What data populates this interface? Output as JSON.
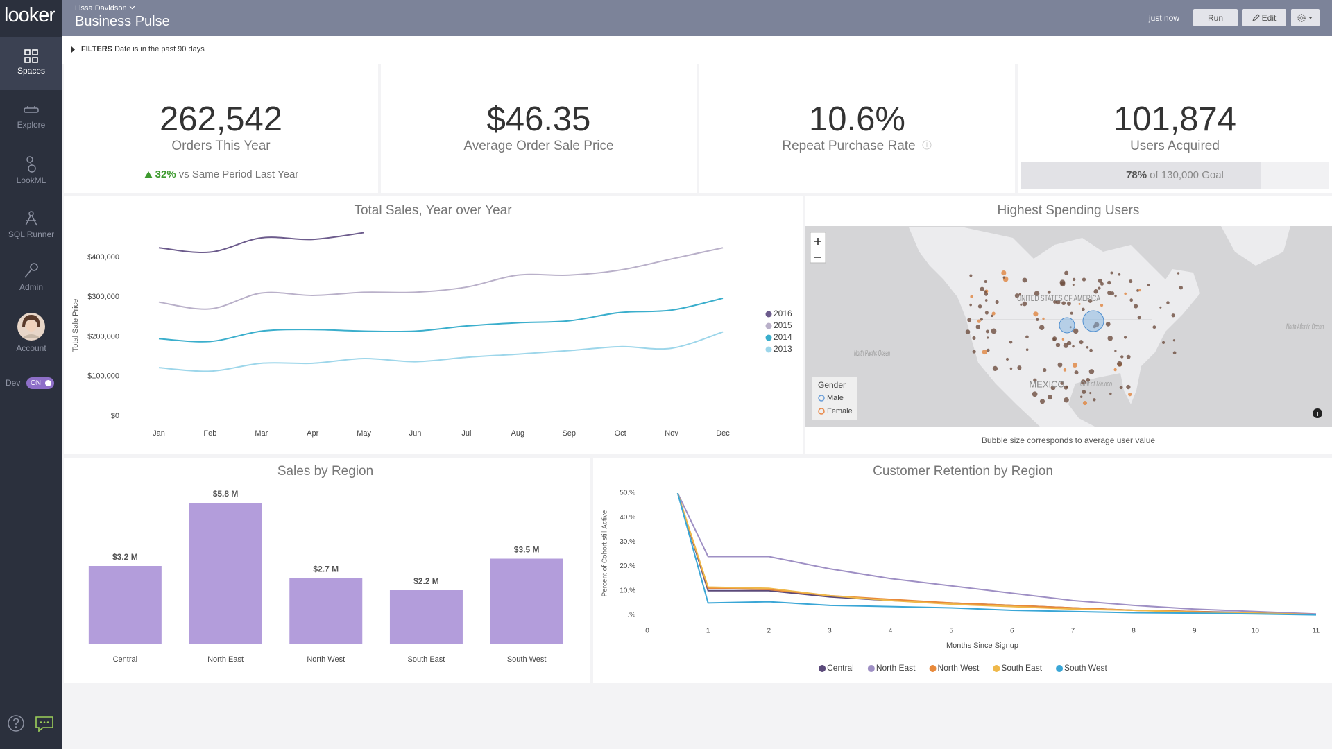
{
  "sidebar": {
    "logo": "looker",
    "items": [
      "Spaces",
      "Explore",
      "LookML",
      "SQL Runner",
      "Admin",
      "Account"
    ],
    "dev": "Dev",
    "dev_toggle": "ON"
  },
  "header": {
    "user": "Lissa Davidson",
    "title": "Business Pulse",
    "updated": "just now",
    "buttons": [
      "Run",
      "Edit"
    ]
  },
  "filters": {
    "label": "FILTERS",
    "text": "Date is in the past 90 days"
  },
  "kpis": [
    {
      "value": "262,542",
      "label": "Orders This Year",
      "change": "32%",
      "comparison": "vs Same Period Last Year"
    },
    {
      "value": "$46.35",
      "label": "Average Order Sale Price"
    },
    {
      "value": "10.6%",
      "label": "Repeat Purchase Rate"
    },
    {
      "value": "101,874",
      "label": "Users Acquired",
      "progress": {
        "value": 78,
        "label": "78%"
      },
      "goal": "of 130,000 Goal"
    }
  ],
  "map": {
    "title": "Highest Spending Users",
    "legend_title": "Gender",
    "legend": [
      "Male",
      "Female"
    ],
    "labels": [
      "UNITED STATES OF AMERICA",
      "MEXICO",
      "North Pacific Ocean",
      "North Atlantic Ocean",
      "Gulf of Mexico"
    ],
    "caption": "Bubble size corresponds to average user value"
  },
  "chart_data": [
    {
      "type": "line",
      "title": "Total Sales, Year over Year",
      "y_label": "Total Sale Price",
      "categories": [
        "Jan",
        "Feb",
        "Mar",
        "Apr",
        "May",
        "Jun",
        "Jul",
        "Aug",
        "Sep",
        "Oct",
        "Nov",
        "Dec"
      ],
      "series": [
        {
          "name": "2016",
          "color": "#6c5b8c",
          "values": [
            424000,
            413000,
            449000,
            445000,
            462000,
            null,
            null,
            null,
            null,
            null,
            null,
            null
          ]
        },
        {
          "name": "2015",
          "color": "#b9b0c9",
          "values": [
            287000,
            270000,
            310000,
            304000,
            312000,
            312000,
            325000,
            355000,
            355000,
            368000,
            396000,
            424000
          ]
        },
        {
          "name": "2014",
          "color": "#3aaecc",
          "values": [
            195000,
            188000,
            214000,
            218000,
            214000,
            214000,
            227000,
            235000,
            240000,
            261000,
            267000,
            297000
          ]
        },
        {
          "name": "2013",
          "color": "#9dd6ea",
          "values": [
            122000,
            113000,
            133000,
            133000,
            145000,
            137000,
            148000,
            156000,
            165000,
            175000,
            171000,
            212000
          ]
        }
      ],
      "ylim": [
        0,
        480000
      ],
      "yticks": [
        {
          "value": 0,
          "label": "$0"
        },
        {
          "value": 100000,
          "label": "$100,000"
        },
        {
          "value": 200000,
          "label": "$200,000"
        },
        {
          "value": 300000,
          "label": "$300,000"
        },
        {
          "value": 400000,
          "label": "$400,000"
        }
      ],
      "legend": "right"
    },
    {
      "type": "bar",
      "title": "Sales by Region",
      "categories": [
        "Central",
        "North East",
        "North West",
        "South East",
        "South West"
      ],
      "values": [
        3.2,
        5.8,
        2.7,
        2.2,
        3.5
      ],
      "value_labels": [
        "$3.2 M",
        "$5.8 M",
        "$2.7 M",
        "$2.2 M",
        "$3.5 M"
      ],
      "color": "#b39ddb"
    },
    {
      "type": "line",
      "title": "Customer Retention by Region",
      "x_label": "Months Since Signup",
      "y_label": "Percent of Cohort still Active",
      "x": [
        0.5,
        1,
        2,
        3,
        4,
        5,
        6,
        7,
        8,
        9,
        10,
        11
      ],
      "series": [
        {
          "name": "Central",
          "color": "#5b4a7a",
          "values": [
            50,
            10,
            10,
            7.5,
            6,
            5,
            4,
            3,
            2,
            1.5,
            1,
            0.3
          ]
        },
        {
          "name": "North East",
          "color": "#9e8fc4",
          "values": [
            50,
            24,
            24,
            19,
            15,
            12,
            9,
            6,
            4,
            2.5,
            1.5,
            0.5
          ]
        },
        {
          "name": "North West",
          "color": "#e8893a",
          "values": [
            50,
            11,
            10.5,
            8,
            6.5,
            5,
            4,
            3,
            2,
            1.5,
            0.8,
            0.3
          ]
        },
        {
          "name": "South East",
          "color": "#efb84a",
          "values": [
            50,
            11.5,
            11,
            8,
            6,
            4.5,
            3.5,
            2.5,
            2,
            1.2,
            0.8,
            0.2
          ]
        },
        {
          "name": "South West",
          "color": "#3aa6d6",
          "values": [
            50,
            5,
            5.5,
            4,
            3.5,
            3,
            2,
            1.5,
            1,
            0.8,
            0.5,
            0.1
          ]
        }
      ],
      "xlim": [
        0,
        11
      ],
      "xticks": [
        0,
        1,
        2,
        3,
        4,
        5,
        6,
        7,
        8,
        9,
        10,
        11
      ],
      "ylim": [
        0,
        50
      ],
      "yticks": [
        {
          "value": 0,
          "label": ".%"
        },
        {
          "value": 10,
          "label": "10.%"
        },
        {
          "value": 20,
          "label": "20.%"
        },
        {
          "value": 30,
          "label": "30.%"
        },
        {
          "value": 40,
          "label": "40.%"
        },
        {
          "value": 50,
          "label": "50.%"
        }
      ],
      "legend": "bottom"
    }
  ]
}
